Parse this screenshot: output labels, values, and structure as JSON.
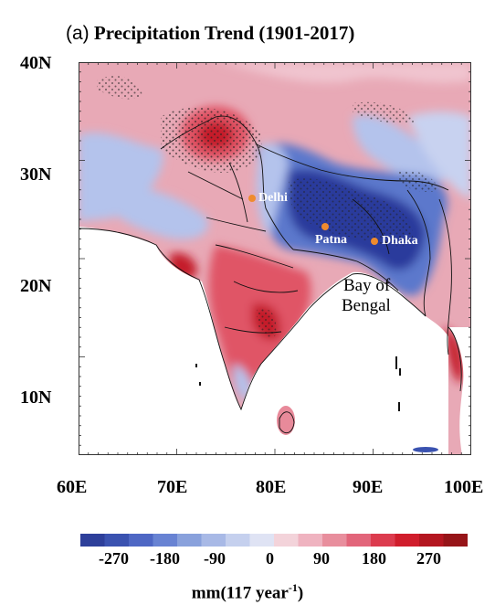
{
  "figure": {
    "panel_label": "(a)",
    "title": "Precipitation Trend (1901-2017)"
  },
  "axes": {
    "lat_ticks": [
      "40N",
      "30N",
      "20N",
      "10N"
    ],
    "lon_ticks": [
      "60E",
      "70E",
      "80E",
      "90E",
      "100E"
    ]
  },
  "map": {
    "cities": [
      {
        "name": "Delhi",
        "lon": 77.2,
        "lat": 28.6
      },
      {
        "name": "Patna",
        "lon": 85.1,
        "lat": 25.6
      },
      {
        "name": "Dhaka",
        "lon": 90.4,
        "lat": 23.8
      }
    ],
    "water_label_line1": "Bay of",
    "water_label_line2": "Bengal",
    "colors": {
      "strong_negative": "#2b3a9c",
      "negative": "#5b78cc",
      "weak_negative": "#b4c3ec",
      "weak_positive": "#f0b8c6",
      "positive": "#e05566",
      "strong_positive": "#c41c2a",
      "background": "#e8a9b6"
    }
  },
  "colorbar": {
    "tick_labels": [
      "-270",
      "-180",
      "-90",
      "0",
      "90",
      "180",
      "270"
    ],
    "unit_main": "mm(117 year",
    "unit_sup": "-1",
    "unit_close": ")",
    "colors": [
      "#2d3f9a",
      "#3a52b0",
      "#4e67c4",
      "#6883d3",
      "#89a1dc",
      "#a8b9e6",
      "#c5d0ee",
      "#dfe3f4",
      "#f3d3da",
      "#efb3c0",
      "#e88e9d",
      "#e2657a",
      "#dc3b4e",
      "#d01d2c",
      "#b41620",
      "#961418"
    ]
  }
}
